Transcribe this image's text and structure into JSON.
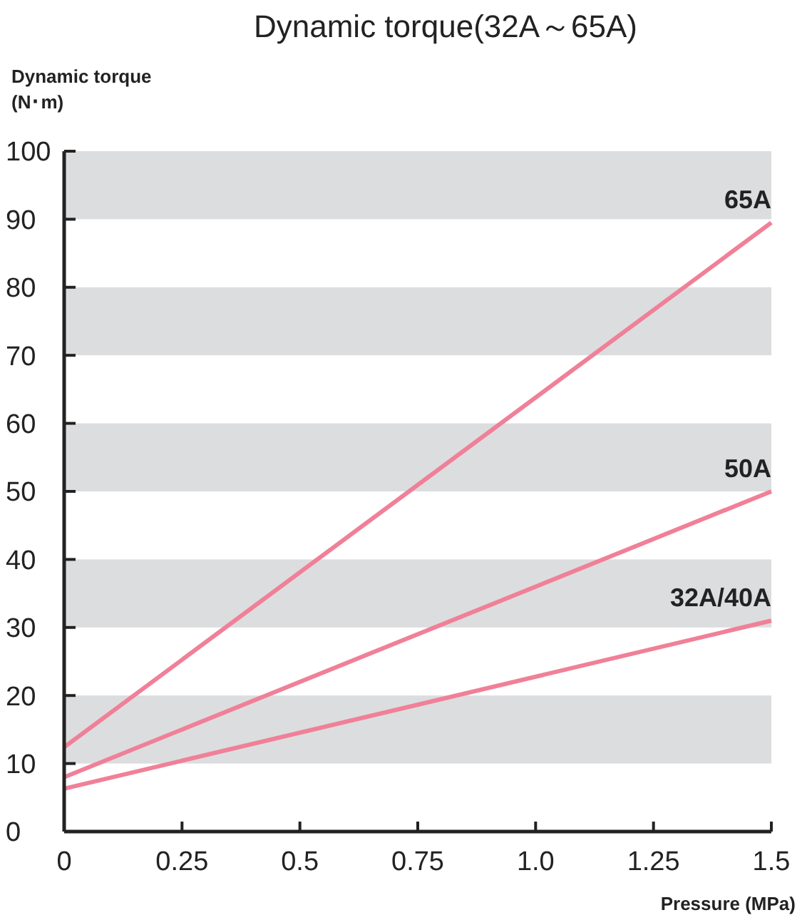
{
  "chart_data": {
    "type": "line",
    "title": "Dynamic torque(32A～65A)",
    "xlabel": "Pressure (MPa)",
    "ylabel": "Dynamic torque\n(N･m)",
    "x": [
      0,
      1.5
    ],
    "series": [
      {
        "name": "65A",
        "color": "#f08098",
        "values": [
          12.4,
          89.5
        ]
      },
      {
        "name": "50A",
        "color": "#f08098",
        "values": [
          8,
          50
        ]
      },
      {
        "name": "32A/40A",
        "color": "#f08098",
        "values": [
          6.3,
          31
        ]
      }
    ],
    "xlim": [
      0,
      1.5
    ],
    "ylim": [
      0,
      100
    ],
    "xticks": [
      0,
      0.25,
      0.5,
      {
        "value": 1,
        "label": "1.0"
      },
      0.75,
      1.25,
      1.5
    ],
    "yticks": [
      0,
      10,
      20,
      30,
      40,
      50,
      60,
      70,
      80,
      90,
      100
    ],
    "bands": [
      {
        "axis": "y",
        "from": 10,
        "to": 20,
        "color": "#dcdddf"
      },
      {
        "axis": "y",
        "from": 30,
        "to": 40,
        "color": "#dcdddf"
      },
      {
        "axis": "y",
        "from": 50,
        "to": 60,
        "color": "#dcdddf"
      },
      {
        "axis": "y",
        "from": 70,
        "to": 80,
        "color": "#dcdddf"
      },
      {
        "axis": "y",
        "from": 90,
        "to": 100,
        "color": "#dcdddf"
      }
    ],
    "grid": false,
    "marker": "none",
    "line_style": "solid"
  }
}
